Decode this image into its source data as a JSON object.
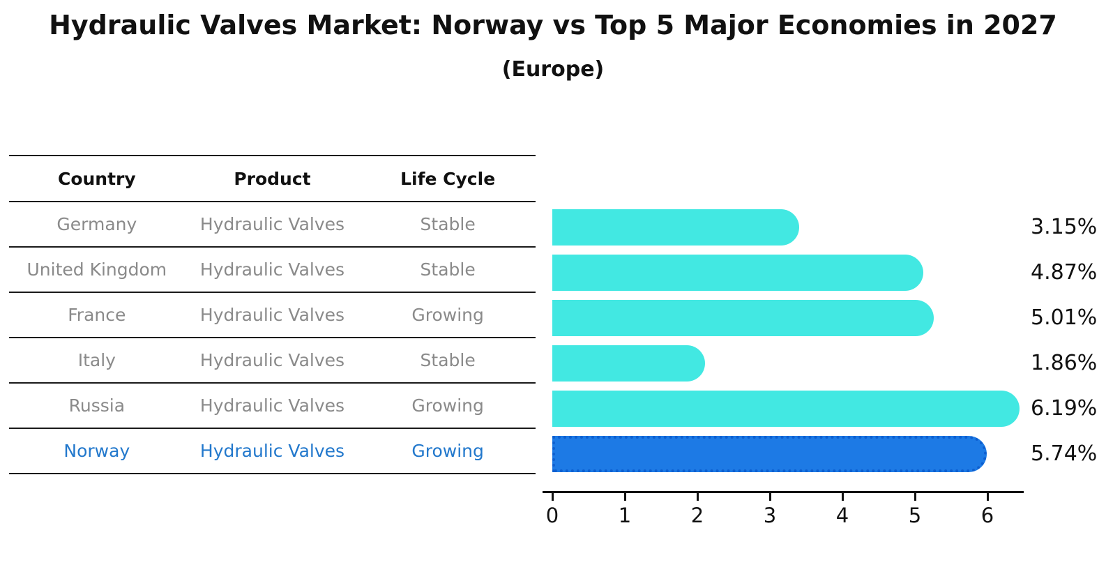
{
  "title": "Hydraulic Valves Market: Norway vs Top 5 Major Economies in 2027",
  "subtitle": "(Europe)",
  "table": {
    "headers": [
      "Country",
      "Product",
      "Life Cycle"
    ],
    "rows": [
      {
        "country": "Germany",
        "product": "Hydraulic Valves",
        "life_cycle": "Stable",
        "highlight": false
      },
      {
        "country": "United Kingdom",
        "product": "Hydraulic Valves",
        "life_cycle": "Stable",
        "highlight": false
      },
      {
        "country": "France",
        "product": "Hydraulic Valves",
        "life_cycle": "Growing",
        "highlight": false
      },
      {
        "country": "Italy",
        "product": "Hydraulic Valves",
        "life_cycle": "Stable",
        "highlight": false
      },
      {
        "country": "Russia",
        "product": "Hydraulic Valves",
        "life_cycle": "Growing",
        "highlight": false
      },
      {
        "country": "Norway",
        "product": "Hydraulic Valves",
        "life_cycle": "Growing",
        "highlight": true
      }
    ]
  },
  "chart_data": {
    "type": "bar",
    "orientation": "horizontal",
    "title": "Hydraulic Valves Market: Norway vs Top 5 Major Economies in 2027",
    "subtitle": "(Europe)",
    "categories": [
      "Germany",
      "United Kingdom",
      "France",
      "Italy",
      "Russia",
      "Norway"
    ],
    "values": [
      3.15,
      4.87,
      5.01,
      1.86,
      6.19,
      5.74
    ],
    "value_labels": [
      "3.15%",
      "4.87%",
      "5.01%",
      "1.86%",
      "6.19%",
      "5.74%"
    ],
    "highlight_index": 5,
    "x_ticks": [
      "0",
      "1",
      "2",
      "3",
      "4",
      "5",
      "6"
    ],
    "xlim": [
      0,
      6.6
    ],
    "grid": false,
    "legend": false,
    "bar_color": "#42e8e2",
    "highlight_color": "#1d7ae5",
    "highlight_border_color": "#0d5fd0",
    "axis_color": "#111111",
    "muted_text_color": "#8a8a8a",
    "highlight_text_color": "#2278cc"
  }
}
